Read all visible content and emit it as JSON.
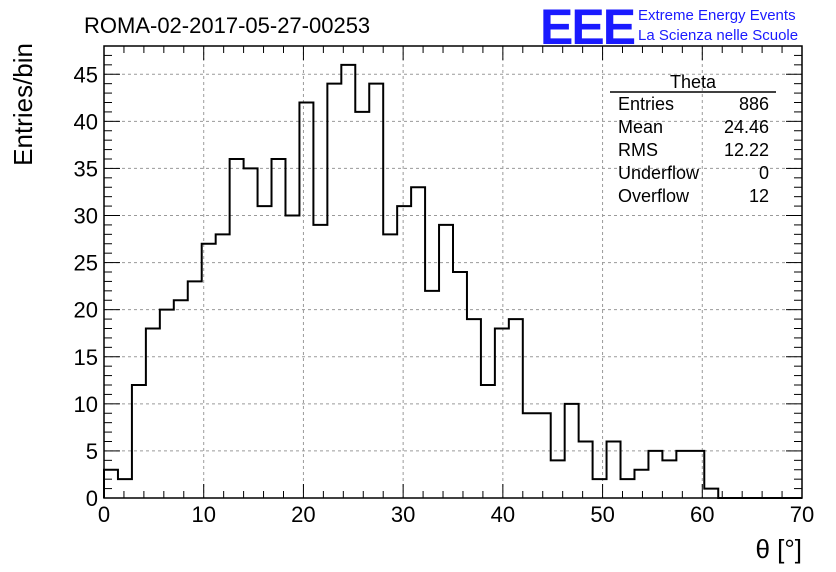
{
  "logo": {
    "mark": "EEE",
    "line1": "Extreme Energy Events",
    "line2": "La Scienza nelle Scuole"
  },
  "stats": {
    "name": "Theta",
    "rows": [
      {
        "label": "Entries",
        "value": "886"
      },
      {
        "label": "Mean",
        "value": "24.46"
      },
      {
        "label": "RMS",
        "value": "12.22"
      },
      {
        "label": "Underflow",
        "value": "0"
      },
      {
        "label": "Overflow",
        "value": "12"
      }
    ]
  },
  "chart_data": {
    "type": "bar",
    "title": "ROMA-02-2017-05-27-00253",
    "xlabel": "θ [°]",
    "ylabel": "Entries/bin",
    "xlim": [
      0,
      70
    ],
    "ylim": [
      0,
      48
    ],
    "grid": true,
    "bin_width": 1.4,
    "bin_start": 0,
    "x_ticks": [
      0,
      10,
      20,
      30,
      40,
      50,
      60,
      70
    ],
    "y_ticks": [
      0,
      5,
      10,
      15,
      20,
      25,
      30,
      35,
      40,
      45
    ],
    "values": [
      3,
      2,
      12,
      18,
      20,
      21,
      23,
      27,
      28,
      36,
      35,
      31,
      36,
      30,
      42,
      29,
      44,
      46,
      41,
      44,
      28,
      31,
      33,
      22,
      29,
      24,
      19,
      12,
      18,
      19,
      9,
      9,
      4,
      10,
      6,
      2,
      6,
      2,
      3,
      5,
      4,
      5,
      5,
      1,
      0,
      0,
      0,
      0,
      0,
      0
    ],
    "line_color": "#000000",
    "grid_color": "#9a9a9a"
  }
}
